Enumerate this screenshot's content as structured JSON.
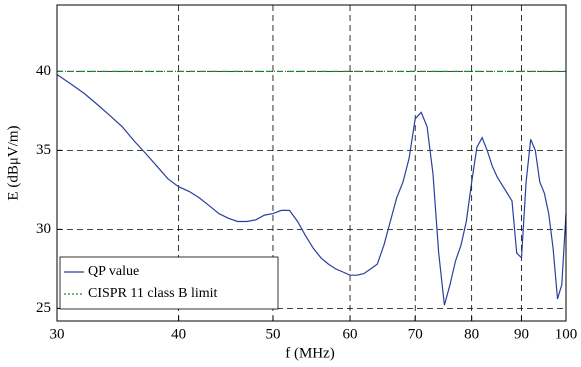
{
  "chart_data": {
    "type": "line",
    "xlabel": "f (MHz)",
    "ylabel": "E (dBμV/m)",
    "xscale": "log",
    "grid": true,
    "legend": "lower left",
    "xlim": [
      30,
      100
    ],
    "ylim": [
      24.2,
      44.2
    ],
    "xticks": [
      30,
      40,
      50,
      60,
      70,
      80,
      90,
      100
    ],
    "yticks": [
      25,
      30,
      35,
      40
    ],
    "series": [
      {
        "name": "QP value",
        "color": "#2b3f9e",
        "style": "solid",
        "x": [
          30,
          31,
          32,
          33,
          34,
          35,
          36,
          37,
          38,
          39,
          40,
          41,
          42,
          43,
          44,
          45,
          46,
          47,
          48,
          49,
          50,
          51,
          52,
          53,
          54,
          55,
          56,
          57,
          58,
          59,
          60,
          61,
          62,
          63,
          64,
          65,
          66,
          67,
          68,
          69,
          70,
          71,
          72,
          73,
          74,
          75,
          76,
          77,
          78,
          79,
          80,
          81,
          82,
          83,
          84,
          85,
          86,
          87,
          88,
          89,
          90,
          91,
          92,
          93,
          94,
          95,
          96,
          97,
          98,
          99,
          100
        ],
        "values": [
          39.8,
          39.2,
          38.6,
          37.9,
          37.2,
          36.5,
          35.6,
          34.8,
          34.0,
          33.2,
          32.7,
          32.4,
          32.0,
          31.5,
          31.0,
          30.7,
          30.5,
          30.5,
          30.6,
          30.9,
          31.0,
          31.2,
          31.2,
          30.5,
          29.6,
          28.8,
          28.2,
          27.8,
          27.5,
          27.3,
          27.1,
          27.1,
          27.2,
          27.5,
          27.8,
          29.0,
          30.5,
          32.0,
          33.0,
          34.5,
          37.0,
          37.4,
          36.5,
          33.5,
          28.5,
          25.2,
          26.5,
          28.0,
          29.0,
          30.5,
          33.0,
          35.2,
          35.8,
          35.0,
          34.0,
          33.3,
          32.8,
          32.3,
          31.8,
          28.5,
          28.2,
          33.0,
          35.7,
          35.0,
          33.0,
          32.3,
          31.0,
          28.8,
          25.6,
          26.5,
          31.0
        ]
      },
      {
        "name": "CISPR 11 class B limit",
        "color": "#1a8a3a",
        "style": "dashdot",
        "x": [
          30,
          100
        ],
        "values": [
          40,
          40
        ]
      }
    ]
  }
}
